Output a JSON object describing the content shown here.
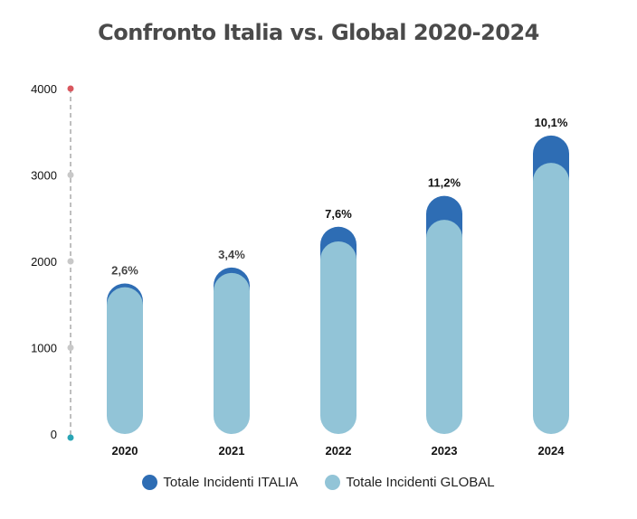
{
  "chart_data": {
    "type": "bar",
    "stacked": true,
    "title": "Confronto Italia vs. Global 2020-2024",
    "categories": [
      "2020",
      "2021",
      "2022",
      "2023",
      "2024"
    ],
    "series": [
      {
        "name": "Totale Incidenti GLOBAL",
        "color": "#92c4d7",
        "values": [
          1700,
          1865,
          2230,
          2480,
          3140
        ]
      },
      {
        "name": "Totale Incidenti ITALIA",
        "color": "#2e6db4",
        "values": [
          44,
          63,
          170,
          278,
          317
        ]
      }
    ],
    "data_labels": [
      "2,6%",
      "3,4%",
      "7,6%",
      "11,2%",
      "10,1%"
    ],
    "ylim": [
      0,
      4000
    ],
    "yticks": [
      "0",
      "1000",
      "2000",
      "3000",
      "4000"
    ],
    "grid": false,
    "legend_position": "bottom"
  }
}
